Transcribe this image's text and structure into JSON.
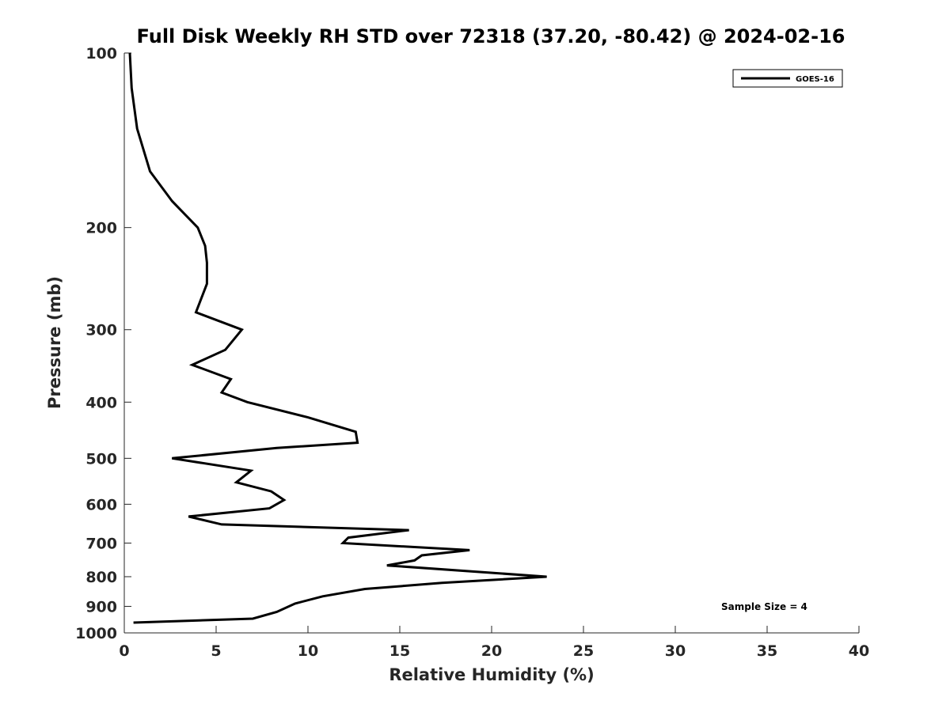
{
  "chart_data": {
    "type": "line",
    "title": "Full Disk Weekly RH STD over 72318 (37.20, -80.42) @ 2024-02-16",
    "xlabel": "Relative Humidity (%)",
    "ylabel": "Pressure (mb)",
    "xlim": [
      0,
      40
    ],
    "ylim": [
      100,
      1000
    ],
    "yscale": "log",
    "y_reversed": true,
    "grid": false,
    "xticks": [
      0,
      5,
      10,
      15,
      20,
      25,
      30,
      35,
      40
    ],
    "yticks": [
      100,
      200,
      300,
      400,
      500,
      600,
      700,
      800,
      900,
      1000
    ],
    "legend_position": "top-right",
    "annotation": "Sample Size = 4",
    "series": [
      {
        "name": "GOES-16",
        "color": "#000000",
        "points": [
          [
            0.3,
            100
          ],
          [
            0.4,
            115
          ],
          [
            0.7,
            135
          ],
          [
            1.4,
            160
          ],
          [
            2.6,
            180
          ],
          [
            4.0,
            200
          ],
          [
            4.4,
            215
          ],
          [
            4.5,
            230
          ],
          [
            4.5,
            250
          ],
          [
            3.9,
            280
          ],
          [
            6.4,
            300
          ],
          [
            5.5,
            325
          ],
          [
            3.7,
            345
          ],
          [
            5.8,
            365
          ],
          [
            5.3,
            385
          ],
          [
            6.7,
            400
          ],
          [
            10.0,
            425
          ],
          [
            12.6,
            450
          ],
          [
            12.7,
            470
          ],
          [
            8.3,
            480
          ],
          [
            2.6,
            500
          ],
          [
            6.9,
            525
          ],
          [
            6.1,
            550
          ],
          [
            8.0,
            570
          ],
          [
            8.7,
            590
          ],
          [
            7.9,
            610
          ],
          [
            3.5,
            630
          ],
          [
            5.3,
            650
          ],
          [
            15.5,
            665
          ],
          [
            12.2,
            685
          ],
          [
            11.9,
            700
          ],
          [
            18.8,
            720
          ],
          [
            16.2,
            735
          ],
          [
            15.8,
            750
          ],
          [
            14.3,
            765
          ],
          [
            23.0,
            800
          ],
          [
            17.3,
            820
          ],
          [
            13.1,
            840
          ],
          [
            10.8,
            865
          ],
          [
            9.3,
            890
          ],
          [
            8.3,
            920
          ],
          [
            7.0,
            945
          ],
          [
            0.5,
            960
          ]
        ]
      }
    ]
  }
}
